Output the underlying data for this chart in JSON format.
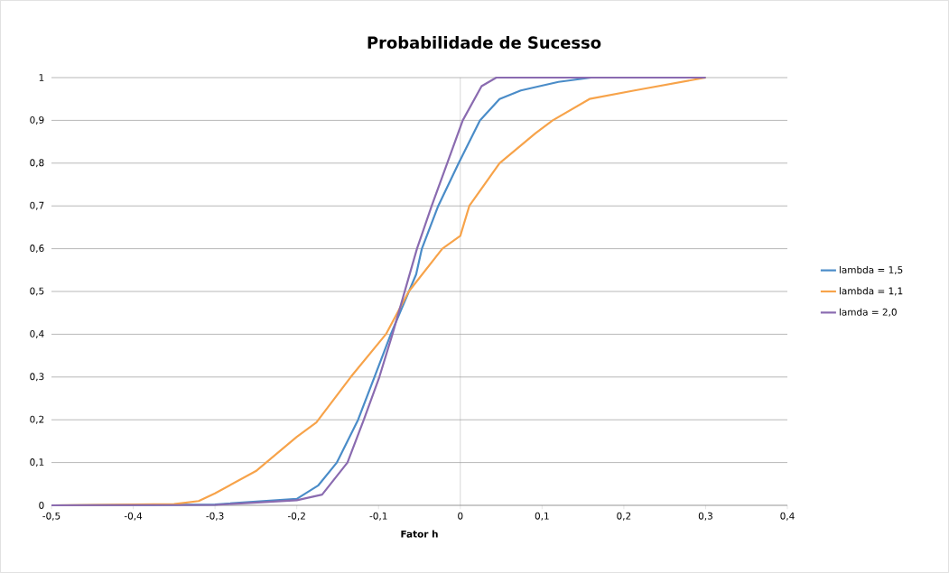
{
  "chart_data": {
    "type": "line",
    "title": "Probabilidade de Sucesso",
    "xlabel": "Fator h",
    "xlim": [
      -0.5,
      0.4
    ],
    "xticks": [
      {
        "value": -0.5,
        "label": "-0,5"
      },
      {
        "value": -0.4,
        "label": "-0,4"
      },
      {
        "value": -0.3,
        "label": "-0,3"
      },
      {
        "value": -0.2,
        "label": "-0,2"
      },
      {
        "value": -0.1,
        "label": "-0,1"
      },
      {
        "value": 0,
        "label": "0"
      },
      {
        "value": 0.1,
        "label": "0,1"
      },
      {
        "value": 0.2,
        "label": "0,2"
      },
      {
        "value": 0.3,
        "label": "0,3"
      },
      {
        "value": 0.4,
        "label": "0,4"
      }
    ],
    "ylim": [
      0,
      1
    ],
    "yticks": [
      {
        "value": 0,
        "label": "0"
      },
      {
        "value": 0.1,
        "label": "0,1"
      },
      {
        "value": 0.2,
        "label": "0,2"
      },
      {
        "value": 0.3,
        "label": "0,3"
      },
      {
        "value": 0.4,
        "label": "0,4"
      },
      {
        "value": 0.5,
        "label": "0,5"
      },
      {
        "value": 0.6,
        "label": "0,6"
      },
      {
        "value": 0.7,
        "label": "0,7"
      },
      {
        "value": 0.8,
        "label": "0,8"
      },
      {
        "value": 0.9,
        "label": "0,9"
      },
      {
        "value": 1,
        "label": "1"
      }
    ],
    "grid": "y",
    "legend": "right",
    "marker": "none",
    "line_style": "solid",
    "series": [
      {
        "name": "lambda = 1,5",
        "color": "#4a8cc8",
        "x": [
          -0.5,
          -0.3,
          -0.2,
          -0.174,
          -0.151,
          -0.125,
          -0.105,
          -0.085,
          -0.054,
          -0.047,
          -0.027,
          -0.002,
          0.024,
          0.048,
          0.074,
          0.12,
          0.16,
          0.3
        ],
        "values": [
          0,
          0.002,
          0.015,
          0.046,
          0.1,
          0.2,
          0.3,
          0.4,
          0.54,
          0.6,
          0.7,
          0.8,
          0.9,
          0.95,
          0.97,
          0.99,
          1,
          1
        ]
      },
      {
        "name": "lambda = 1,1",
        "color": "#f7a34a",
        "x": [
          -0.5,
          -0.35,
          -0.32,
          -0.3,
          -0.25,
          -0.2,
          -0.176,
          -0.134,
          -0.091,
          -0.063,
          -0.022,
          0,
          0.011,
          0.048,
          0.092,
          0.113,
          0.158,
          0.213,
          0.3
        ],
        "values": [
          0,
          0.003,
          0.01,
          0.028,
          0.08,
          0.16,
          0.194,
          0.3,
          0.4,
          0.5,
          0.6,
          0.63,
          0.7,
          0.8,
          0.87,
          0.9,
          0.95,
          0.97,
          1
        ]
      },
      {
        "name": "lamda = 2,0",
        "color": "#8a6bb0",
        "x": [
          -0.5,
          -0.3,
          -0.2,
          -0.169,
          -0.138,
          -0.118,
          -0.099,
          -0.083,
          -0.053,
          -0.035,
          -0.016,
          0.003,
          0.026,
          0.044,
          0.3
        ],
        "values": [
          0,
          0.001,
          0.012,
          0.025,
          0.1,
          0.2,
          0.3,
          0.4,
          0.6,
          0.7,
          0.8,
          0.9,
          0.98,
          1,
          1
        ]
      }
    ]
  }
}
